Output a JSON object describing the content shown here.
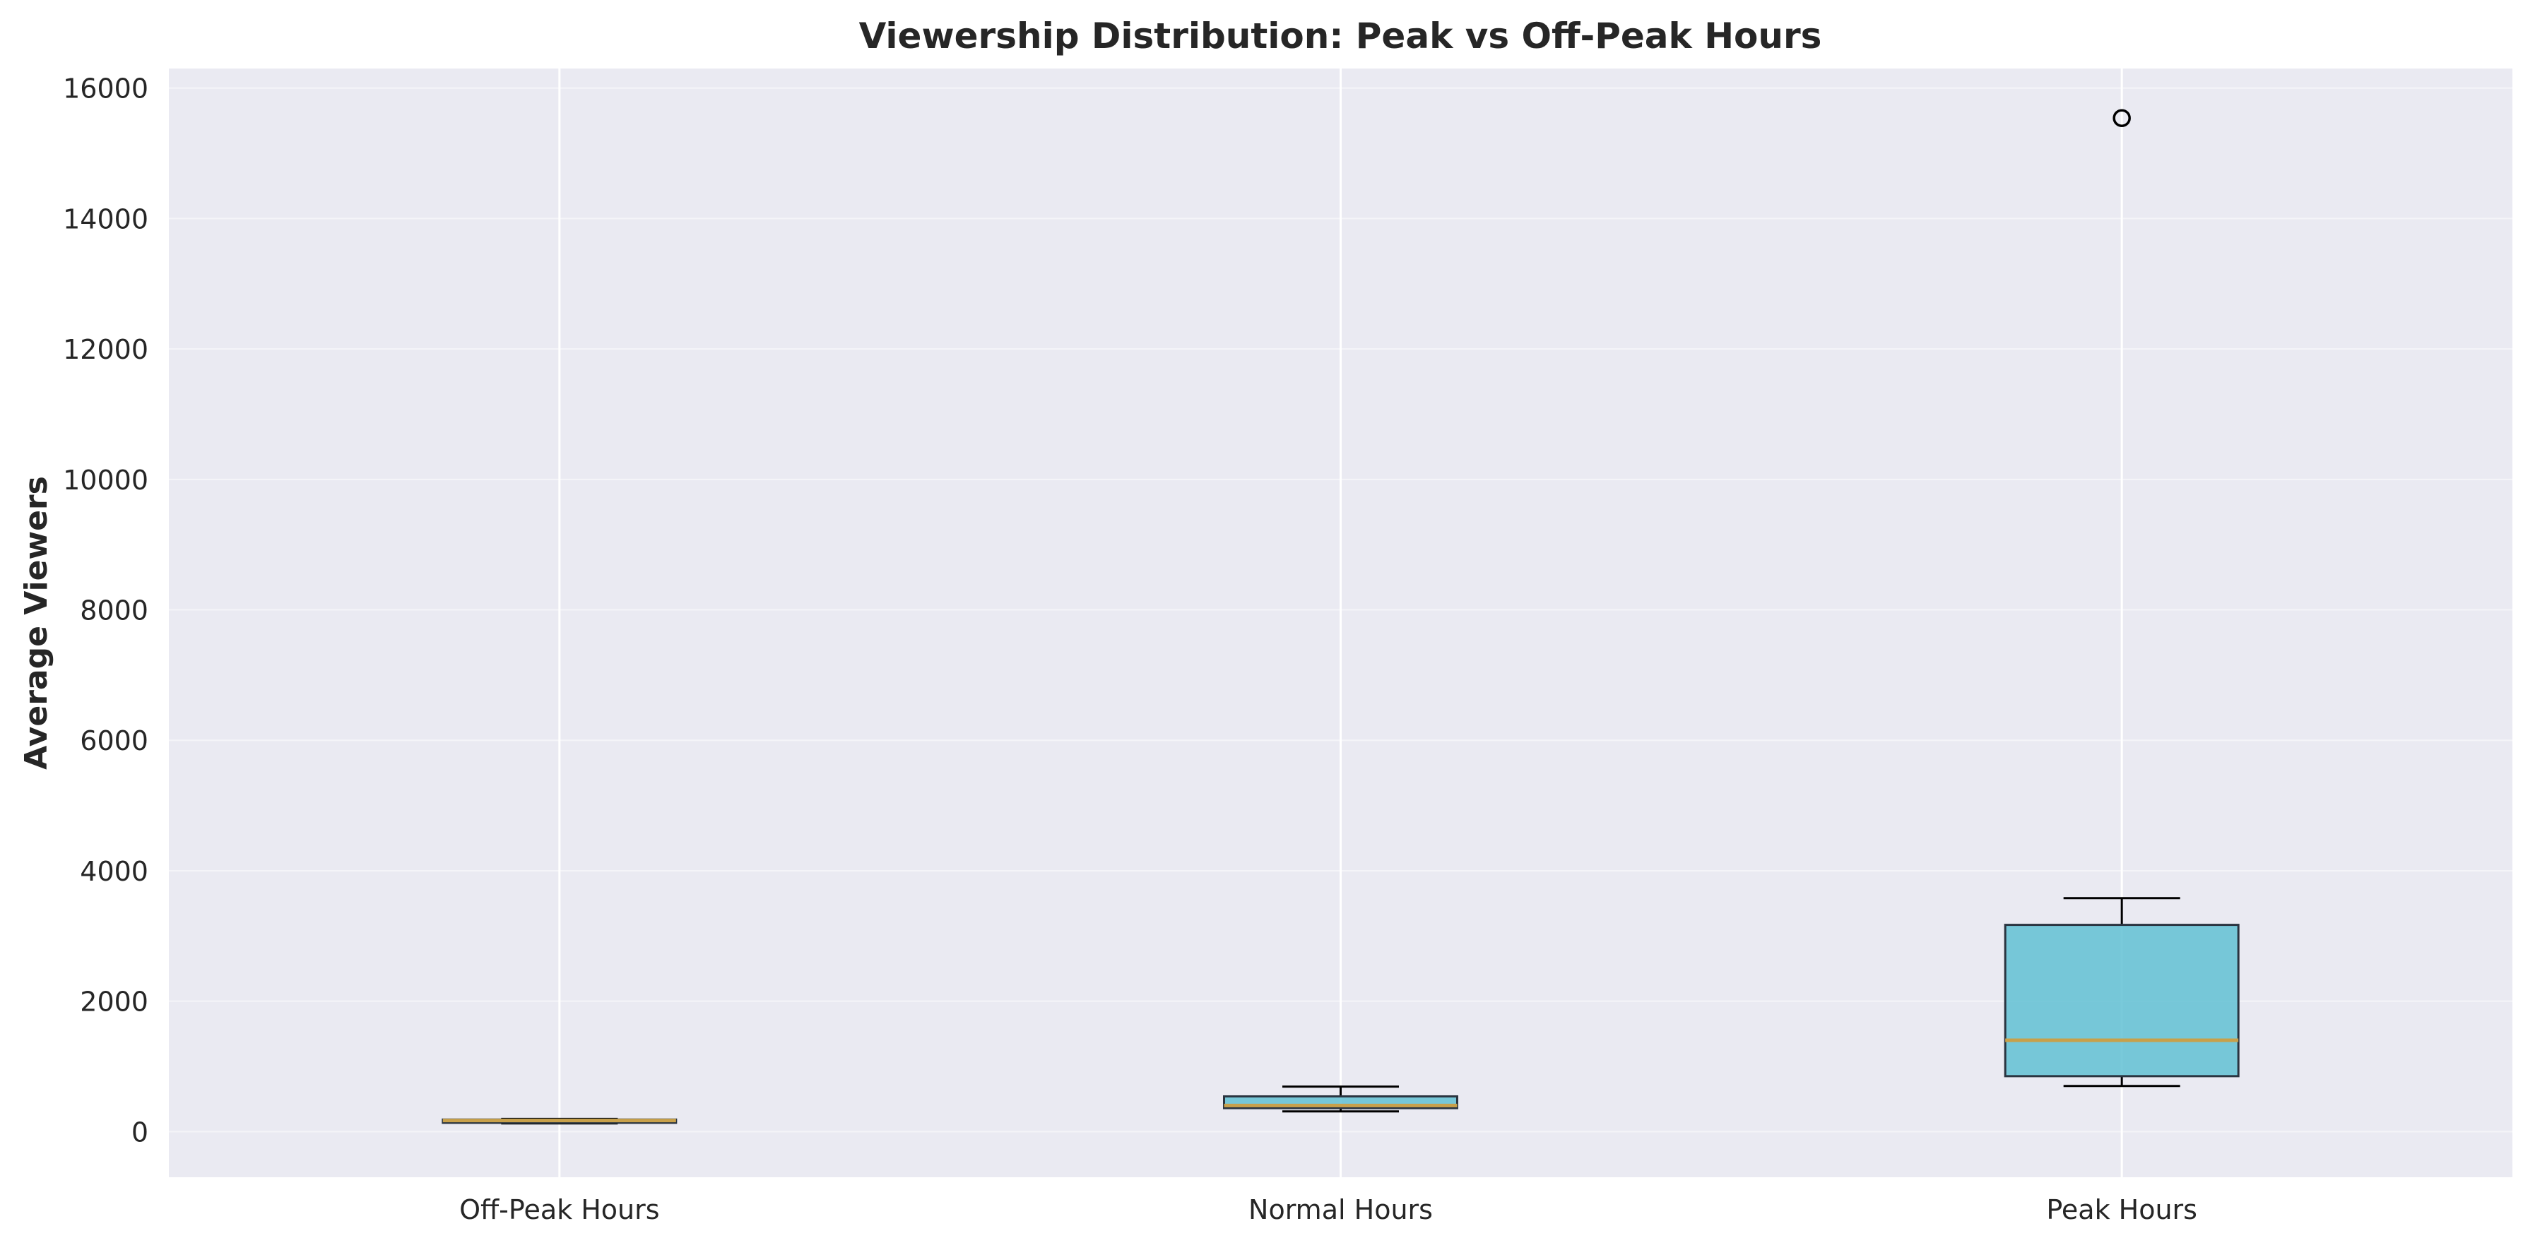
{
  "chart_data": {
    "type": "box",
    "title": "Viewership Distribution: Peak vs Off-Peak Hours",
    "xlabel": "",
    "ylabel": "Average Viewers",
    "ylim": [
      -700,
      16300
    ],
    "yticks": [
      0,
      2000,
      4000,
      6000,
      8000,
      10000,
      12000,
      14000,
      16000
    ],
    "grid": true,
    "categories": [
      "Off-Peak Hours",
      "Normal Hours",
      "Peak Hours"
    ],
    "boxes": [
      {
        "category": "Off-Peak Hours",
        "whisker_low": 125,
        "q1": 135,
        "median": 170,
        "q3": 185,
        "whisker_high": 195,
        "outliers": []
      },
      {
        "category": "Normal Hours",
        "whisker_low": 310,
        "q1": 360,
        "median": 400,
        "q3": 540,
        "whisker_high": 690,
        "outliers": []
      },
      {
        "category": "Peak Hours",
        "whisker_low": 700,
        "q1": 850,
        "median": 1400,
        "q3": 3170,
        "whisker_high": 3580,
        "outliers": [
          15540
        ]
      }
    ],
    "colors": {
      "background": "#eaeaf2",
      "grid": "#ffffff",
      "box_fill": "#62c1d4",
      "box_edge": "#2a3440",
      "median": "#c8a04a",
      "whisker": "#000000"
    }
  }
}
